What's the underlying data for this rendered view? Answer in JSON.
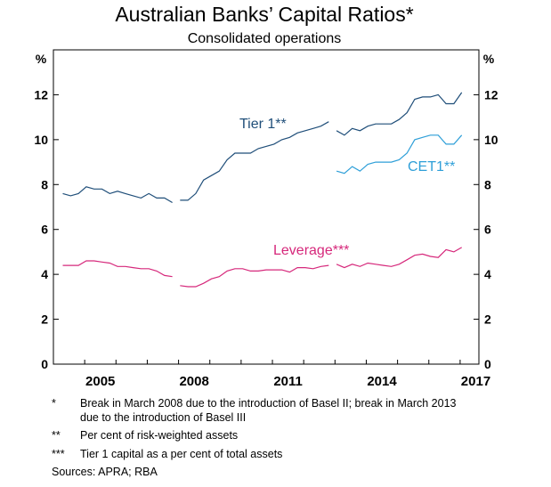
{
  "chart_data": {
    "type": "line",
    "title": "Australian Banks’ Capital Ratios*",
    "subtitle": "Consolidated operations",
    "ylabel_left": "%",
    "ylabel_right": "%",
    "ylim": [
      0,
      14
    ],
    "yticks": [
      0,
      2,
      4,
      6,
      8,
      10,
      12
    ],
    "xlim": [
      2004,
      2017.6
    ],
    "xticks": [
      2005,
      2008,
      2011,
      2014,
      2017
    ],
    "grid": false,
    "series": [
      {
        "name": "Tier 1**",
        "color": "#1f4e79",
        "segments": [
          [
            [
              2004.3,
              7.6
            ],
            [
              2004.55,
              7.5
            ],
            [
              2004.8,
              7.6
            ],
            [
              2005.05,
              7.9
            ],
            [
              2005.3,
              7.8
            ],
            [
              2005.55,
              7.8
            ],
            [
              2005.8,
              7.6
            ],
            [
              2006.05,
              7.7
            ],
            [
              2006.3,
              7.6
            ],
            [
              2006.55,
              7.5
            ],
            [
              2006.8,
              7.4
            ],
            [
              2007.05,
              7.6
            ],
            [
              2007.3,
              7.4
            ],
            [
              2007.55,
              7.4
            ],
            [
              2007.8,
              7.2
            ]
          ],
          [
            [
              2008.05,
              7.3
            ],
            [
              2008.3,
              7.3
            ],
            [
              2008.55,
              7.6
            ],
            [
              2008.8,
              8.2
            ],
            [
              2009.05,
              8.4
            ],
            [
              2009.3,
              8.6
            ],
            [
              2009.55,
              9.1
            ],
            [
              2009.8,
              9.4
            ],
            [
              2010.05,
              9.4
            ],
            [
              2010.3,
              9.4
            ],
            [
              2010.55,
              9.6
            ],
            [
              2010.8,
              9.7
            ],
            [
              2011.05,
              9.8
            ],
            [
              2011.3,
              10.0
            ],
            [
              2011.55,
              10.1
            ],
            [
              2011.8,
              10.3
            ],
            [
              2012.05,
              10.4
            ],
            [
              2012.3,
              10.5
            ],
            [
              2012.55,
              10.6
            ],
            [
              2012.8,
              10.8
            ]
          ],
          [
            [
              2013.05,
              10.4
            ],
            [
              2013.3,
              10.2
            ],
            [
              2013.55,
              10.5
            ],
            [
              2013.8,
              10.4
            ],
            [
              2014.05,
              10.6
            ],
            [
              2014.3,
              10.7
            ],
            [
              2014.55,
              10.7
            ],
            [
              2014.8,
              10.7
            ],
            [
              2015.05,
              10.9
            ],
            [
              2015.3,
              11.2
            ],
            [
              2015.55,
              11.8
            ],
            [
              2015.8,
              11.9
            ],
            [
              2016.05,
              11.9
            ],
            [
              2016.3,
              12.0
            ],
            [
              2016.55,
              11.6
            ],
            [
              2016.8,
              11.6
            ],
            [
              2017.05,
              12.1
            ]
          ]
        ]
      },
      {
        "name": "CET1**",
        "color": "#2e9fd8",
        "segments": [
          [
            [
              2013.05,
              8.6
            ],
            [
              2013.3,
              8.5
            ],
            [
              2013.55,
              8.8
            ],
            [
              2013.8,
              8.6
            ],
            [
              2014.05,
              8.9
            ],
            [
              2014.3,
              9.0
            ],
            [
              2014.55,
              9.0
            ],
            [
              2014.8,
              9.0
            ],
            [
              2015.05,
              9.1
            ],
            [
              2015.3,
              9.4
            ],
            [
              2015.55,
              10.0
            ],
            [
              2015.8,
              10.1
            ],
            [
              2016.05,
              10.2
            ],
            [
              2016.3,
              10.2
            ],
            [
              2016.55,
              9.8
            ],
            [
              2016.8,
              9.8
            ],
            [
              2017.05,
              10.2
            ]
          ]
        ]
      },
      {
        "name": "Leverage***",
        "color": "#d6287b",
        "segments": [
          [
            [
              2004.3,
              4.4
            ],
            [
              2004.55,
              4.4
            ],
            [
              2004.8,
              4.4
            ],
            [
              2005.05,
              4.6
            ],
            [
              2005.3,
              4.6
            ],
            [
              2005.55,
              4.55
            ],
            [
              2005.8,
              4.5
            ],
            [
              2006.05,
              4.35
            ],
            [
              2006.3,
              4.35
            ],
            [
              2006.55,
              4.3
            ],
            [
              2006.8,
              4.25
            ],
            [
              2007.05,
              4.25
            ],
            [
              2007.3,
              4.15
            ],
            [
              2007.55,
              3.95
            ],
            [
              2007.8,
              3.9
            ]
          ],
          [
            [
              2008.05,
              3.5
            ],
            [
              2008.3,
              3.45
            ],
            [
              2008.55,
              3.45
            ],
            [
              2008.8,
              3.6
            ],
            [
              2009.05,
              3.8
            ],
            [
              2009.3,
              3.9
            ],
            [
              2009.55,
              4.15
            ],
            [
              2009.8,
              4.25
            ],
            [
              2010.05,
              4.25
            ],
            [
              2010.3,
              4.15
            ],
            [
              2010.55,
              4.15
            ],
            [
              2010.8,
              4.2
            ],
            [
              2011.05,
              4.2
            ],
            [
              2011.3,
              4.2
            ],
            [
              2011.55,
              4.1
            ],
            [
              2011.8,
              4.3
            ],
            [
              2012.05,
              4.3
            ],
            [
              2012.3,
              4.25
            ],
            [
              2012.55,
              4.35
            ],
            [
              2012.8,
              4.4
            ]
          ],
          [
            [
              2013.05,
              4.45
            ],
            [
              2013.3,
              4.3
            ],
            [
              2013.55,
              4.45
            ],
            [
              2013.8,
              4.35
            ],
            [
              2014.05,
              4.5
            ],
            [
              2014.3,
              4.45
            ],
            [
              2014.55,
              4.4
            ],
            [
              2014.8,
              4.35
            ],
            [
              2015.05,
              4.45
            ],
            [
              2015.3,
              4.65
            ],
            [
              2015.55,
              4.85
            ],
            [
              2015.8,
              4.9
            ],
            [
              2016.05,
              4.8
            ],
            [
              2016.3,
              4.75
            ],
            [
              2016.55,
              5.1
            ],
            [
              2016.8,
              5.0
            ],
            [
              2017.05,
              5.2
            ]
          ]
        ]
      }
    ],
    "annotations": {
      "tier1": "Tier 1**",
      "cet1": "CET1**",
      "leverage": "Leverage***"
    }
  },
  "notes": [
    {
      "mark": "*",
      "text": "Break in March 2008 due to the introduction of Basel II; break in March 2013 due to the introduction of Basel III"
    },
    {
      "mark": "**",
      "text": "Per cent of risk-weighted assets"
    },
    {
      "mark": "***",
      "text": "Tier 1 capital as a per cent of total assets"
    }
  ],
  "sources": "Sources:   APRA; RBA"
}
